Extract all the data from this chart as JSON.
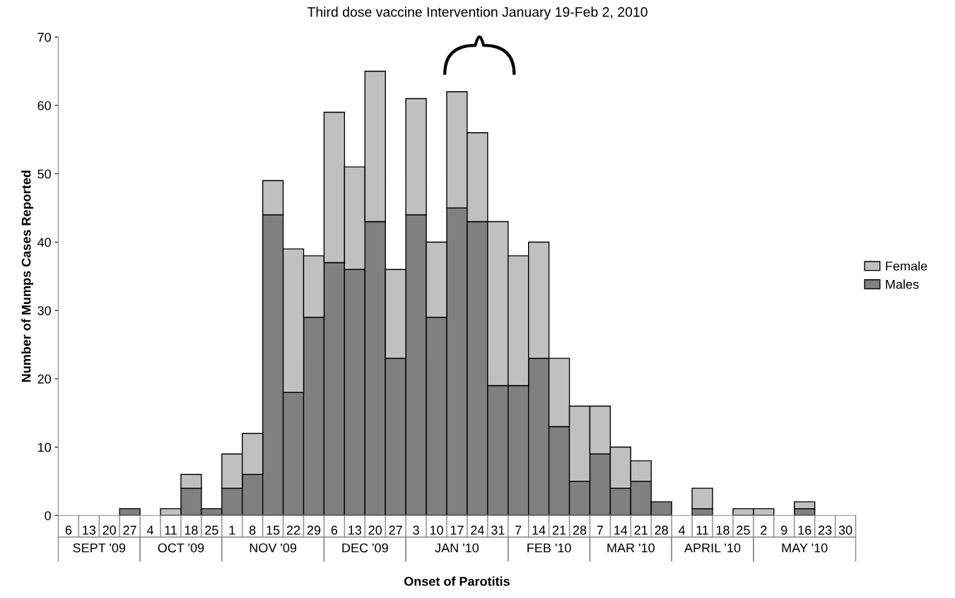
{
  "chart_data": {
    "type": "bar",
    "stacked": true,
    "title": "Third dose vaccine Intervention January 19-Feb 2, 2010",
    "xlabel": "Onset of Parotitis",
    "ylabel": "Number of Mumps Cases Reported",
    "categories": [
      "6",
      "13",
      "20",
      "27",
      "4",
      "11",
      "18",
      "25",
      "1",
      "8",
      "15",
      "22",
      "29",
      "6",
      "13",
      "20",
      "27",
      "3",
      "10",
      "17",
      "24",
      "31",
      "7",
      "14",
      "21",
      "28",
      "7",
      "14",
      "21",
      "28",
      "4",
      "11",
      "18",
      "25",
      "2",
      "9",
      "16",
      "23",
      "30"
    ],
    "annotations": [
      "SEPT '09",
      "OCT '09",
      "NOV '09",
      "DEC '09",
      "JAN '10",
      "FEB '10",
      "MAR '10",
      "APRIL '10",
      "MAY '10"
    ],
    "series": [
      {
        "name": "Males",
        "color": "#808080",
        "values": [
          0,
          0,
          0,
          1,
          0,
          0,
          4,
          1,
          4,
          6,
          44,
          18,
          29,
          37,
          36,
          43,
          23,
          44,
          29,
          45,
          43,
          19,
          19,
          23,
          13,
          5,
          9,
          4,
          5,
          2,
          0,
          1,
          0,
          0,
          0,
          0,
          1,
          0,
          0
        ]
      },
      {
        "name": "Female",
        "color": "#c0c0c0",
        "values": [
          0,
          0,
          0,
          0,
          0,
          1,
          2,
          0,
          5,
          6,
          5,
          21,
          9,
          22,
          15,
          22,
          13,
          17,
          11,
          17,
          13,
          24,
          19,
          17,
          10,
          11,
          7,
          6,
          3,
          0,
          0,
          3,
          0,
          1,
          1,
          0,
          1,
          0,
          0
        ]
      }
    ],
    "ylim": [
      0,
      70
    ],
    "yticks": [
      0,
      10,
      20,
      30,
      40,
      50,
      60,
      70
    ],
    "grid": false,
    "legend": "right"
  }
}
